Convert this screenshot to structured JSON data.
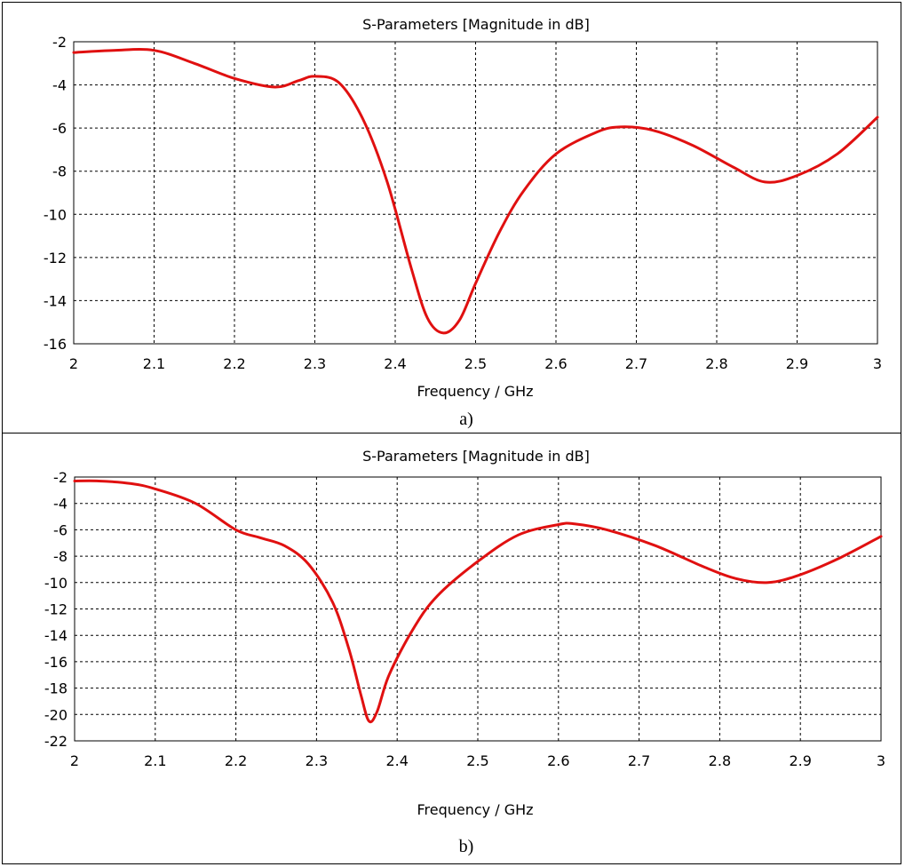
{
  "chart_data": [
    {
      "type": "line",
      "title": "S-Parameters [Magnitude in dB]",
      "xlabel": "Frequency / GHz",
      "ylabel": "",
      "caption": "a)",
      "xlim": [
        2,
        3
      ],
      "ylim": [
        -16,
        -2
      ],
      "xticks": [
        "2",
        "2.1",
        "2.2",
        "2.3",
        "2.4",
        "2.5",
        "2.6",
        "2.7",
        "2.8",
        "2.9",
        "3"
      ],
      "yticks": [
        "-2",
        "-4",
        "-6",
        "-8",
        "-10",
        "-12",
        "-14",
        "-16"
      ],
      "grid": true,
      "line_color": "#e01010",
      "series": [
        {
          "x": [
            2.0,
            2.05,
            2.1,
            2.15,
            2.2,
            2.25,
            2.28,
            2.3,
            2.33,
            2.36,
            2.39,
            2.42,
            2.44,
            2.46,
            2.48,
            2.5,
            2.53,
            2.56,
            2.6,
            2.65,
            2.68,
            2.72,
            2.77,
            2.82,
            2.86,
            2.9,
            2.95,
            3.0
          ],
          "y": [
            -2.5,
            -2.4,
            -2.4,
            -3.0,
            -3.7,
            -4.1,
            -3.8,
            -3.6,
            -3.9,
            -5.6,
            -8.5,
            -12.5,
            -14.8,
            -15.5,
            -14.9,
            -13.2,
            -10.8,
            -8.9,
            -7.2,
            -6.2,
            -5.95,
            -6.1,
            -6.8,
            -7.8,
            -8.5,
            -8.2,
            -7.2,
            -5.5
          ]
        }
      ]
    },
    {
      "type": "line",
      "title": "S-Parameters [Magnitude in dB]",
      "xlabel": "Frequency / GHz",
      "ylabel": "",
      "caption": "b)",
      "xlim": [
        2,
        3
      ],
      "ylim": [
        -22,
        -2
      ],
      "xticks": [
        "2",
        "2.1",
        "2.2",
        "2.3",
        "2.4",
        "2.5",
        "2.6",
        "2.7",
        "2.8",
        "2.9",
        "3"
      ],
      "yticks": [
        "-2",
        "-4",
        "-6",
        "-8",
        "-10",
        "-12",
        "-14",
        "-16",
        "-18",
        "-20",
        "-22"
      ],
      "grid": true,
      "line_color": "#e01010",
      "series": [
        {
          "x": [
            2.0,
            2.03,
            2.07,
            2.1,
            2.15,
            2.2,
            2.23,
            2.26,
            2.29,
            2.32,
            2.34,
            2.355,
            2.365,
            2.375,
            2.39,
            2.42,
            2.45,
            2.5,
            2.55,
            2.6,
            2.62,
            2.66,
            2.72,
            2.78,
            2.82,
            2.86,
            2.9,
            2.95,
            3.0
          ],
          "y": [
            -2.3,
            -2.3,
            -2.5,
            -2.9,
            -4.0,
            -6.0,
            -6.6,
            -7.2,
            -8.6,
            -11.5,
            -15.0,
            -18.5,
            -20.5,
            -19.8,
            -17.0,
            -13.5,
            -11.0,
            -8.4,
            -6.4,
            -5.6,
            -5.55,
            -6.0,
            -7.2,
            -8.8,
            -9.7,
            -10.0,
            -9.4,
            -8.1,
            -6.5
          ]
        }
      ]
    }
  ]
}
